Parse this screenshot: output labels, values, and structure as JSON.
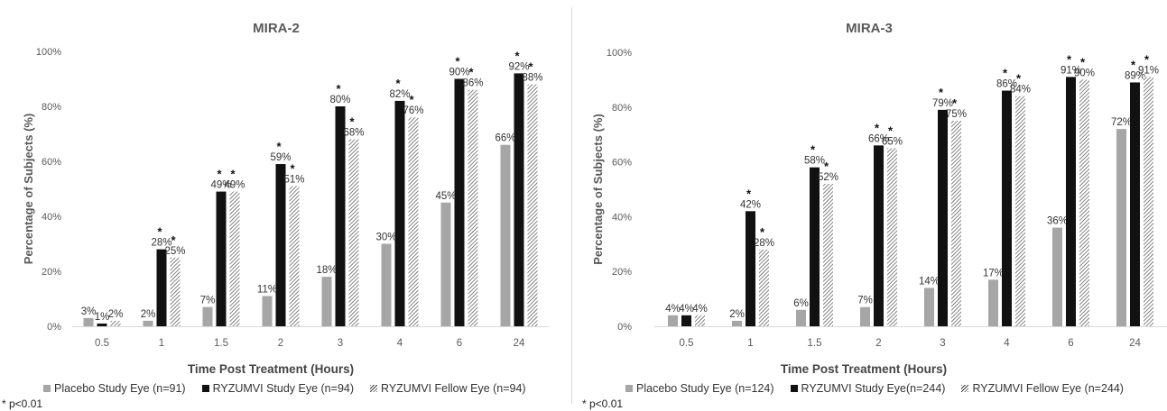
{
  "chart_data": [
    {
      "type": "bar",
      "title": "MIRA-2",
      "xlabel": "Time Post Treatment (Hours)",
      "ylabel": "Percentage of Subjects (%)",
      "ylim": [
        0,
        100
      ],
      "yticks": [
        "0%",
        "20%",
        "40%",
        "60%",
        "80%",
        "100%"
      ],
      "categories": [
        "0.5",
        "1",
        "1.5",
        "2",
        "3",
        "4",
        "6",
        "24"
      ],
      "series": [
        {
          "name": "Placebo Study Eye (n=91)",
          "values": [
            3,
            2,
            7,
            11,
            18,
            30,
            45,
            66
          ],
          "labels": [
            "3%",
            "2%",
            "7%",
            "11%",
            "18%",
            "30%",
            "45%",
            "66%"
          ],
          "significant": [
            false,
            false,
            false,
            false,
            false,
            false,
            false,
            false
          ]
        },
        {
          "name": "RYZUMVI Study Eye (n=94)",
          "values": [
            1,
            28,
            49,
            59,
            80,
            82,
            90,
            92
          ],
          "labels": [
            "1%",
            "28%",
            "49%",
            "59%",
            "80%",
            "82%",
            "90%",
            "92%"
          ],
          "significant": [
            false,
            true,
            true,
            true,
            true,
            true,
            true,
            true
          ]
        },
        {
          "name": "RYZUMVI Fellow Eye (n=94)",
          "values": [
            2,
            25,
            49,
            51,
            68,
            76,
            86,
            88
          ],
          "labels": [
            "2%",
            "25%",
            "49%",
            "51%",
            "68%",
            "76%",
            "86%",
            "88%"
          ],
          "significant": [
            false,
            true,
            true,
            true,
            true,
            true,
            true,
            true
          ]
        }
      ],
      "significance_marker": "*",
      "footnote": "* p<0.01",
      "legend": "bottom",
      "grid": false
    },
    {
      "type": "bar",
      "title": "MIRA-3",
      "xlabel": "Time Post Treatment (Hours)",
      "ylabel": "Percentage of Subjects (%)",
      "ylim": [
        0,
        100
      ],
      "yticks": [
        "0%",
        "20%",
        "40%",
        "60%",
        "80%",
        "100%"
      ],
      "categories": [
        "0.5",
        "1",
        "1.5",
        "2",
        "3",
        "4",
        "6",
        "24"
      ],
      "series": [
        {
          "name": "Placebo Study Eye (n=124)",
          "values": [
            4,
            2,
            6,
            7,
            14,
            17,
            36,
            72
          ],
          "labels": [
            "4%",
            "2%",
            "6%",
            "7%",
            "14%",
            "17%",
            "36%",
            "72%"
          ],
          "significant": [
            false,
            false,
            false,
            false,
            false,
            false,
            false,
            false
          ]
        },
        {
          "name": "RYZUMVI Study Eye(n=244)",
          "values": [
            4,
            42,
            58,
            66,
            79,
            86,
            91,
            89
          ],
          "labels": [
            "4%",
            "42%",
            "58%",
            "66%",
            "79%",
            "86%",
            "91%",
            "89%"
          ],
          "significant": [
            false,
            true,
            true,
            true,
            true,
            true,
            true,
            true
          ]
        },
        {
          "name": "RYZUMVI Fellow Eye (n=244)",
          "values": [
            4,
            28,
            52,
            65,
            75,
            84,
            90,
            91
          ],
          "labels": [
            "4%",
            "28%",
            "52%",
            "65%",
            "75%",
            "84%",
            "90%",
            "91%"
          ],
          "significant": [
            false,
            true,
            true,
            true,
            true,
            true,
            true,
            true
          ]
        }
      ],
      "significance_marker": "*",
      "footnote": "* p<0.01",
      "legend": "bottom",
      "grid": false
    }
  ],
  "colors": {
    "placebo": "#a6a6a6",
    "ryzumvi_study": "#111111",
    "ryzumvi_fellow_hatch": "#444444",
    "axis_text": "#595959",
    "title_text": "#595959"
  }
}
